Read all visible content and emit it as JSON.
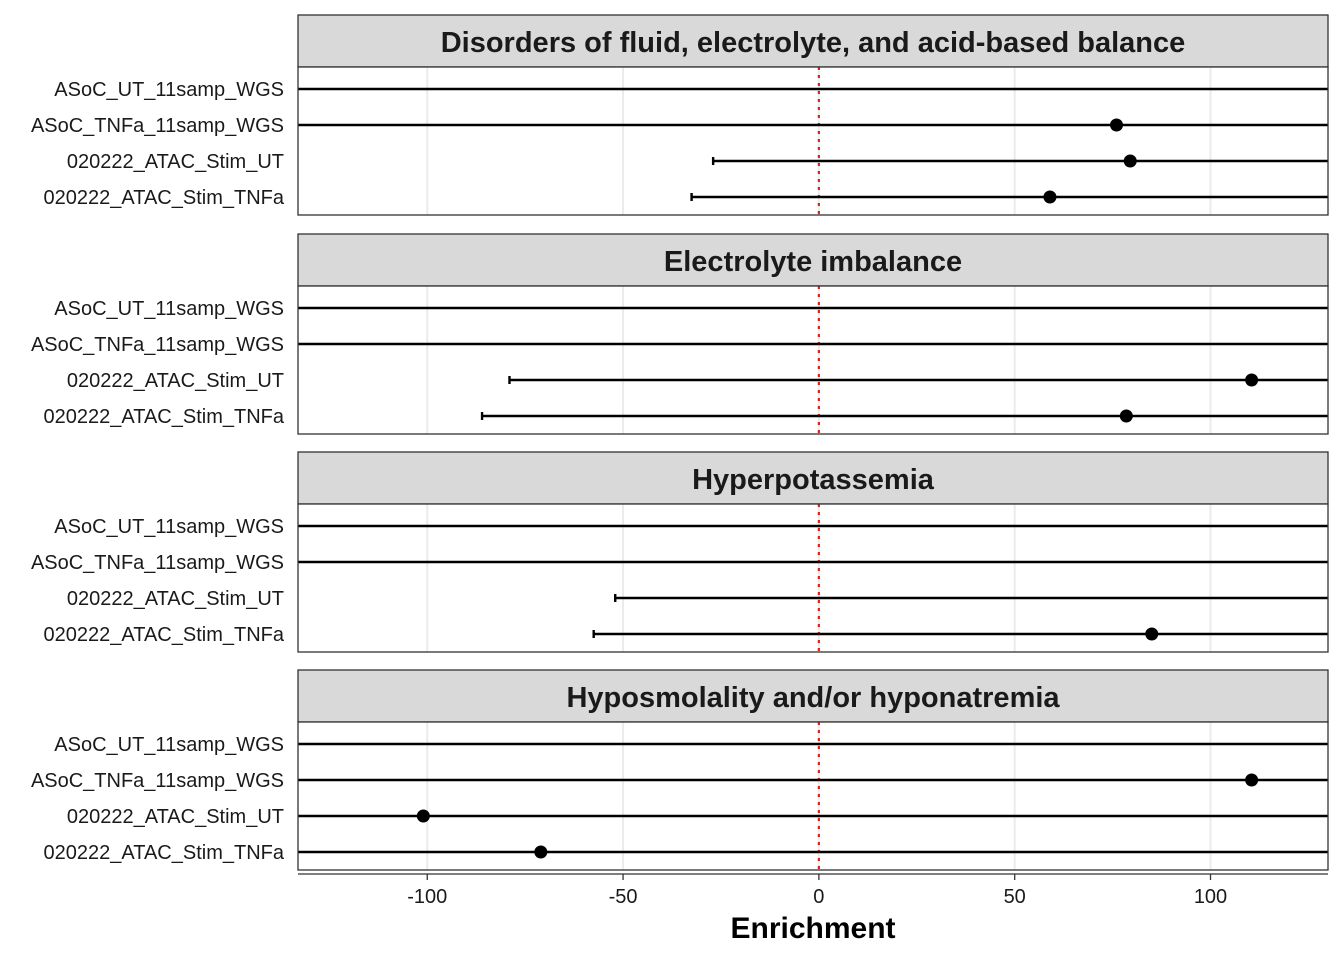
{
  "chart_data": {
    "type": "forest",
    "xlabel": "Enrichment",
    "ylabel": "",
    "xlim": [
      -133,
      130
    ],
    "xticks": [
      -100,
      -50,
      0,
      50,
      100
    ],
    "xtick_labels": [
      "-100",
      "-50",
      "0",
      "50",
      "100"
    ],
    "reference_line": 0,
    "grid": true,
    "categories": [
      "ASoC_UT_11samp_WGS",
      "ASoC_TNFa_11samp_WGS",
      "020222_ATAC_Stim_UT",
      "020222_ATAC_Stim_TNFa"
    ],
    "panels": [
      {
        "title": "Disorders of fluid, electrolyte, and acid-based balance",
        "rows": [
          {
            "label": "ASoC_UT_11samp_WGS",
            "estimate": null,
            "lower": null,
            "upper": null
          },
          {
            "label": "ASoC_TNFa_11samp_WGS",
            "estimate": 76,
            "lower": null,
            "upper": null
          },
          {
            "label": "020222_ATAC_Stim_UT",
            "estimate": 79.5,
            "lower": -27,
            "upper": null
          },
          {
            "label": "020222_ATAC_Stim_TNFa",
            "estimate": 59,
            "lower": -32.5,
            "upper": null
          }
        ]
      },
      {
        "title": "Electrolyte imbalance",
        "rows": [
          {
            "label": "ASoC_UT_11samp_WGS",
            "estimate": null,
            "lower": null,
            "upper": null
          },
          {
            "label": "ASoC_TNFa_11samp_WGS",
            "estimate": null,
            "lower": null,
            "upper": null
          },
          {
            "label": "020222_ATAC_Stim_UT",
            "estimate": 110.5,
            "lower": -79,
            "upper": null
          },
          {
            "label": "020222_ATAC_Stim_TNFa",
            "estimate": 78.5,
            "lower": -86,
            "upper": null
          }
        ]
      },
      {
        "title": "Hyperpotassemia",
        "rows": [
          {
            "label": "ASoC_UT_11samp_WGS",
            "estimate": null,
            "lower": null,
            "upper": null
          },
          {
            "label": "ASoC_TNFa_11samp_WGS",
            "estimate": null,
            "lower": null,
            "upper": null
          },
          {
            "label": "020222_ATAC_Stim_UT",
            "estimate": null,
            "lower": -52,
            "upper": null
          },
          {
            "label": "020222_ATAC_Stim_TNFa",
            "estimate": 85,
            "lower": -57.5,
            "upper": null
          }
        ]
      },
      {
        "title": "Hyposmolality and/or hyponatremia",
        "rows": [
          {
            "label": "ASoC_UT_11samp_WGS",
            "estimate": null,
            "lower": null,
            "upper": null
          },
          {
            "label": "ASoC_TNFa_11samp_WGS",
            "estimate": 110.5,
            "lower": null,
            "upper": null
          },
          {
            "label": "020222_ATAC_Stim_UT",
            "estimate": -101,
            "lower": null,
            "upper": null
          },
          {
            "label": "020222_ATAC_Stim_TNFa",
            "estimate": -71,
            "lower": null,
            "upper": null
          }
        ]
      }
    ],
    "colors": {
      "strip_background": "#d9d9d9",
      "reference_line": "#e0201a",
      "grid": "#ebebeb",
      "point": "#000000",
      "border": "#333333"
    }
  }
}
